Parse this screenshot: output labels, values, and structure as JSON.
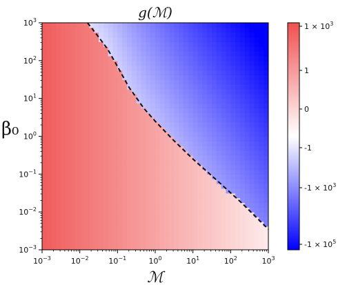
{
  "chart_data": {
    "type": "heatmap",
    "title": "g(ℳ)",
    "xlabel": "ℳ",
    "ylabel": "β₀",
    "x_scale": "log",
    "y_scale": "log",
    "xlim": [
      0.001,
      1000
    ],
    "ylim": [
      0.001,
      1000
    ],
    "x_ticks": [
      {
        "value": 0.001,
        "base": "10",
        "exp": "−3"
      },
      {
        "value": 0.01,
        "base": "10",
        "exp": "−2"
      },
      {
        "value": 0.1,
        "base": "10",
        "exp": "−1"
      },
      {
        "value": 1,
        "base": "10",
        "exp": "0"
      },
      {
        "value": 10,
        "base": "10",
        "exp": "1"
      },
      {
        "value": 100,
        "base": "10",
        "exp": "2"
      },
      {
        "value": 1000,
        "base": "10",
        "exp": "3"
      }
    ],
    "y_ticks": [
      {
        "value": 0.001,
        "base": "10",
        "exp": "−3"
      },
      {
        "value": 0.01,
        "base": "10",
        "exp": "−2"
      },
      {
        "value": 0.1,
        "base": "10",
        "exp": "−1"
      },
      {
        "value": 1,
        "base": "10",
        "exp": "0"
      },
      {
        "value": 10,
        "base": "10",
        "exp": "1"
      },
      {
        "value": 100,
        "base": "10",
        "exp": "2"
      },
      {
        "value": 1000,
        "base": "10",
        "exp": "3"
      }
    ],
    "zero_contour": {
      "style": "dashed",
      "points": [
        {
          "x": 0.016,
          "y": 1000
        },
        {
          "x": 0.03,
          "y": 450
        },
        {
          "x": 0.055,
          "y": 200
        },
        {
          "x": 0.1,
          "y": 70
        },
        {
          "x": 0.2,
          "y": 20
        },
        {
          "x": 0.5,
          "y": 5.5
        },
        {
          "x": 1,
          "y": 2.5
        },
        {
          "x": 3,
          "y": 0.8
        },
        {
          "x": 10,
          "y": 0.25
        },
        {
          "x": 50,
          "y": 0.06
        },
        {
          "x": 200,
          "y": 0.017
        },
        {
          "x": 1000,
          "y": 0.0035
        }
      ]
    },
    "colormap": {
      "name": "bwr",
      "scale": "symlog",
      "ticks": [
        {
          "label": "1 × 10",
          "exp": "3"
        },
        {
          "label": "1",
          "exp": ""
        },
        {
          "label": "0",
          "exp": ""
        },
        {
          "label": "-1",
          "exp": ""
        },
        {
          "label": "-1 × 10",
          "exp": "3"
        },
        {
          "label": "-1 × 10",
          "exp": "5"
        }
      ],
      "positive_color": "#f05050",
      "negative_color": "#0000ff",
      "zero_color": "#ffffff"
    },
    "grid": false
  }
}
